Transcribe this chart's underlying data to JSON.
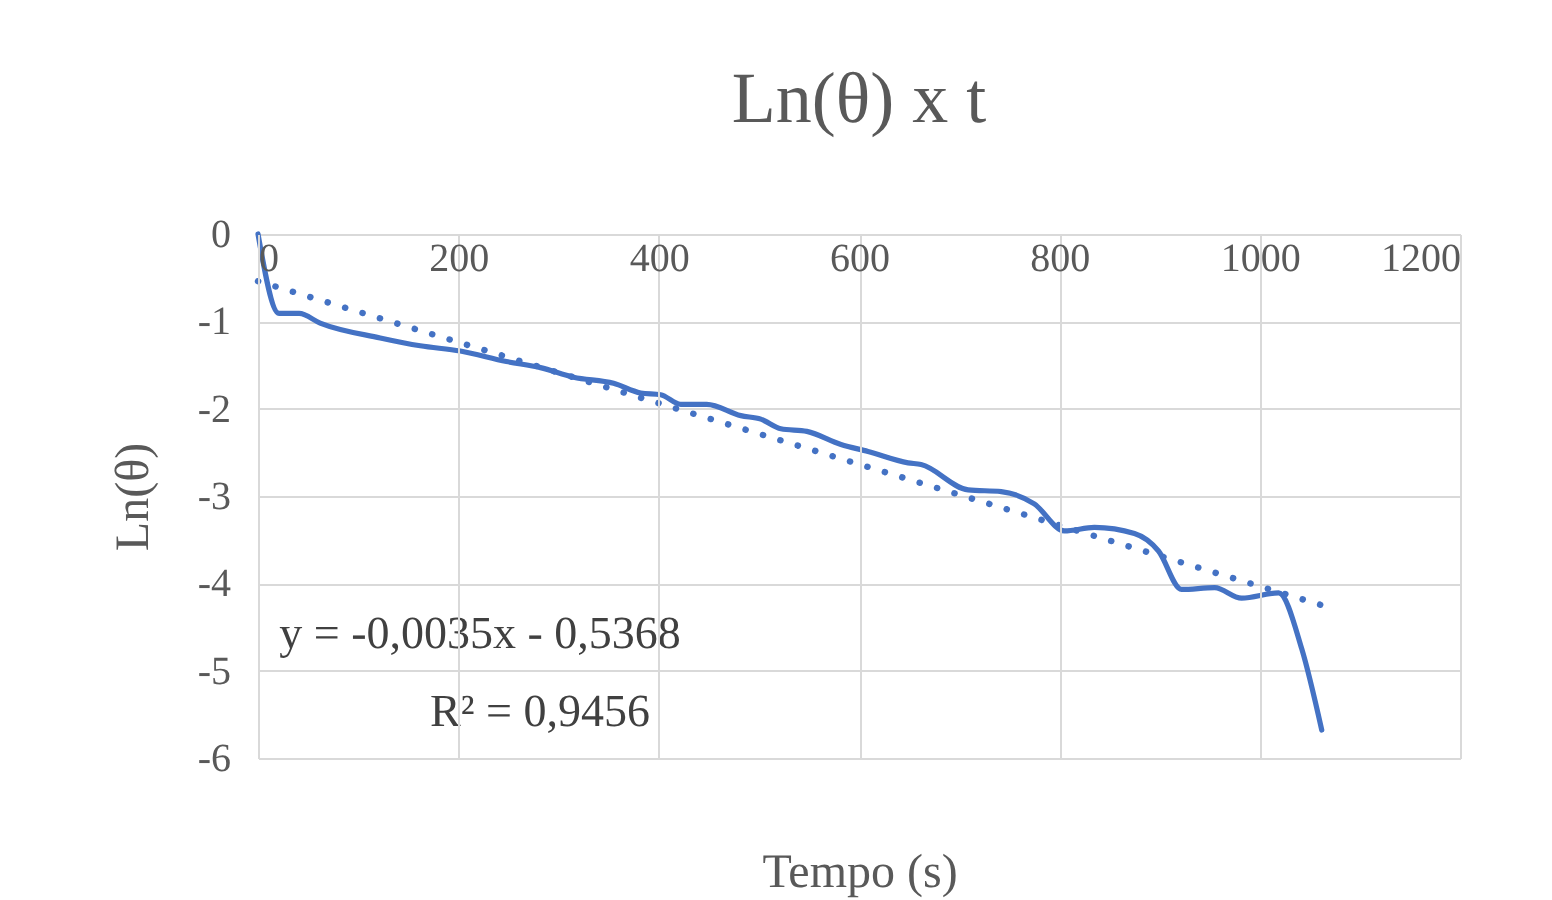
{
  "chart_data": {
    "type": "line",
    "title": "Ln(θ) x t",
    "xlabel": "Tempo (s)",
    "ylabel": "Ln(θ)",
    "xlim": [
      0,
      1200
    ],
    "xticks": [
      0,
      200,
      400,
      600,
      800,
      1000,
      1200
    ],
    "ylim": [
      -6,
      0
    ],
    "yticks": [
      -6,
      -5,
      -4,
      -3,
      -2,
      -1,
      0
    ],
    "grid": true,
    "annotations": [
      "y = -0,0035x - 0,5368",
      "R² = 0,9456"
    ],
    "series": [
      {
        "color": "#4472c4",
        "line_style": "solid",
        "x": [
          0,
          21,
          41,
          62,
          122,
          162,
          202,
          248,
          282,
          315,
          355,
          382,
          402,
          422,
          448,
          482,
          502,
          522,
          548,
          582,
          609,
          649,
          662,
          709,
          742,
          775,
          805,
          835,
          875,
          899,
          922,
          955,
          982,
          1019,
          1042,
          1062
        ],
        "values": [
          0,
          -0.91,
          -0.91,
          -1.02,
          -1.19,
          -1.28,
          -1.34,
          -1.46,
          -1.53,
          -1.64,
          -1.71,
          -1.82,
          -1.84,
          -1.95,
          -1.95,
          -2.08,
          -2.12,
          -2.23,
          -2.26,
          -2.41,
          -2.49,
          -2.62,
          -2.64,
          -2.93,
          -2.95,
          -3.09,
          -3.4,
          -3.36,
          -3.43,
          -3.63,
          -4.07,
          -4.05,
          -4.17,
          -4.11,
          -4.75,
          -5.68
        ]
      },
      {
        "type": "line",
        "color": "#4472c4",
        "line_style": "dotted",
        "x": [
          0,
          1062
        ],
        "values": [
          -0.54,
          -4.25
        ]
      }
    ]
  }
}
